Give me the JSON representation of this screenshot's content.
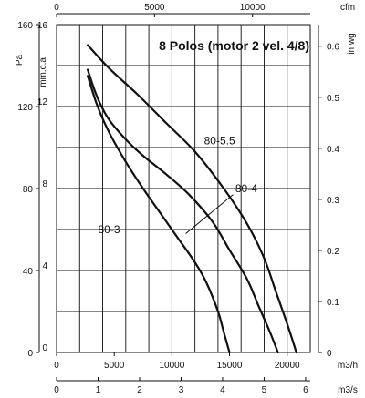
{
  "chart_data": {
    "type": "line",
    "title": "8 Polos (motor 2 vel. 4/8)",
    "xlim": [
      0,
      22000
    ],
    "ylim": [
      0,
      160
    ],
    "axes": {
      "bottom": {
        "unit": "m3/h",
        "ticks": [
          "0",
          "5000",
          "10000",
          "15000",
          "20000"
        ]
      },
      "bottom2": {
        "unit": "m3/s",
        "ticks": [
          "0",
          "1",
          "2",
          "3",
          "4",
          "5",
          "6"
        ]
      },
      "top": {
        "unit": "cfm",
        "ticks": [
          "0",
          "5000",
          "10000"
        ]
      },
      "left": {
        "unit": "Pa",
        "ticks": [
          "0",
          "40",
          "80",
          "120",
          "160"
        ]
      },
      "left2": {
        "unit": "mm.c.a.",
        "ticks": [
          "0",
          "4",
          "8",
          "12",
          "16"
        ]
      },
      "right": {
        "unit": "in wg",
        "ticks": [
          "0",
          "0.1",
          "0.2",
          "0.3",
          "0.4",
          "0.5",
          "0.6"
        ]
      }
    },
    "grid": true,
    "series": [
      {
        "name": "80-5.5",
        "points": [
          [
            2700,
            150
          ],
          [
            4500,
            139
          ],
          [
            7000,
            126
          ],
          [
            9500,
            112
          ],
          [
            12000,
            98
          ],
          [
            14500,
            80
          ],
          [
            16500,
            63
          ],
          [
            18000,
            46
          ],
          [
            19000,
            30
          ],
          [
            20000,
            14
          ],
          [
            20800,
            0
          ]
        ]
      },
      {
        "name": "80-4",
        "points": [
          [
            2700,
            138
          ],
          [
            3500,
            125
          ],
          [
            4500,
            114
          ],
          [
            6000,
            104
          ],
          [
            7500,
            96
          ],
          [
            9500,
            87
          ],
          [
            11500,
            77
          ],
          [
            13500,
            64
          ],
          [
            15000,
            50
          ],
          [
            16500,
            36
          ],
          [
            17500,
            23
          ],
          [
            18500,
            10
          ],
          [
            19200,
            0
          ]
        ]
      },
      {
        "name": "80-3",
        "points": [
          [
            2700,
            135
          ],
          [
            3500,
            121
          ],
          [
            4500,
            108
          ],
          [
            6000,
            93
          ],
          [
            7500,
            80
          ],
          [
            9000,
            68
          ],
          [
            10500,
            56
          ],
          [
            12000,
            44
          ],
          [
            13000,
            34
          ],
          [
            14000,
            20
          ],
          [
            14500,
            10
          ],
          [
            15000,
            0
          ]
        ]
      }
    ]
  }
}
